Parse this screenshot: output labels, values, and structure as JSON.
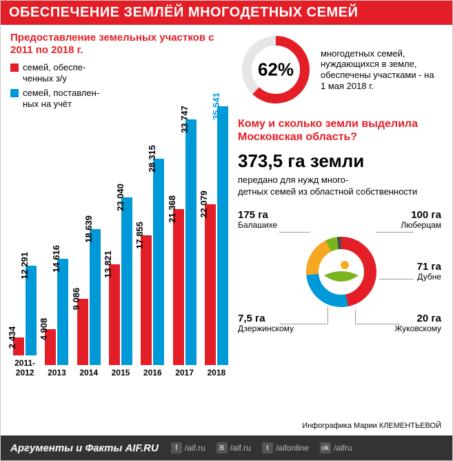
{
  "header": {
    "title": "ОБЕСПЕЧЕНИЕ ЗЕМЛЁЙ МНОГОДЕТНЫХ СЕМЕЙ"
  },
  "colors": {
    "red": "#e41e26",
    "blue": "#0099d8",
    "orange": "#f7a823",
    "green": "#7ab51d",
    "grey_bg": "#333333",
    "donut_track": "#e6e6e6"
  },
  "barchart": {
    "type": "bar",
    "subtitle": "Предоставление земельных участков с 2011 по 2018 г.",
    "legend": {
      "red": "семей, обеспе-\nченных з/у",
      "blue": "семей, поставлен-\nных на учёт"
    },
    "series_colors": {
      "red": "#e41e26",
      "blue": "#0099d8"
    },
    "label_fontsize": 13,
    "ylim": [
      0,
      36000
    ],
    "years": [
      {
        "label": "2011-\n2012",
        "red": 2434,
        "blue": 12291
      },
      {
        "label": "2013",
        "red": 4908,
        "blue": 14616
      },
      {
        "label": "2014",
        "red": 9086,
        "blue": 18639
      },
      {
        "label": "2015",
        "red": 13821,
        "blue": 23040
      },
      {
        "label": "2016",
        "red": 17855,
        "blue": 28315
      },
      {
        "label": "2017",
        "red": 21368,
        "blue": 33747
      },
      {
        "label": "2018",
        "red": 22079,
        "blue": 35541
      }
    ]
  },
  "donut1": {
    "type": "donut",
    "percent": 62,
    "percent_label": "62%",
    "arc_color": "#e41e26",
    "track_color": "#e6e6e6",
    "caption": "многодетных семей, нуждающихся в земле, обеспечены участками - на 1 мая 2018 г."
  },
  "section2": {
    "question": "Кому и сколько земли выделила Московская область?",
    "big": "373,5 га земли",
    "desc": "передано для нужд много-\nдетных семей из областной собственности"
  },
  "donut2": {
    "type": "donut",
    "total": 373.5,
    "segments": [
      {
        "label": "Балашихе",
        "ha": "175 га",
        "value": 175,
        "color": "#e41e26"
      },
      {
        "label": "Люберцам",
        "ha": "100 га",
        "value": 100,
        "color": "#0099d8"
      },
      {
        "label": "Дубне",
        "ha": "71 га",
        "value": 71,
        "color": "#f7a823"
      },
      {
        "label": "Жуковскому",
        "ha": "20 га",
        "value": 20,
        "color": "#7ab51d"
      },
      {
        "label": "Дзержинскому",
        "ha": "7,5 га",
        "value": 7.5,
        "color": "#4a4a4a"
      }
    ]
  },
  "credit": "Инфографика Марии КЛЕМЕНТЬЕВОЙ",
  "footer": {
    "logo": "Аргументы и Факты AIF.RU",
    "links": [
      {
        "icon": "f",
        "text": "/aif.ru"
      },
      {
        "icon": "B",
        "text": "/aif.ru"
      },
      {
        "icon": "t",
        "text": "/aifonline"
      },
      {
        "icon": "ok",
        "text": "/aifru"
      }
    ]
  }
}
